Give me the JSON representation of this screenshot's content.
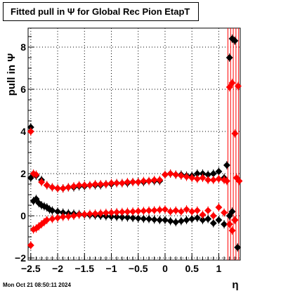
{
  "chart_data": {
    "type": "scatter",
    "title": "Fitted pull in  Ψ  for Global Rec Pion EtapT",
    "xlabel": "η",
    "ylabel": "pull in  Ψ",
    "xlim": [
      -2.55,
      1.4
    ],
    "ylim": [
      -2.1,
      8.9
    ],
    "grid": true,
    "x_ticks": [
      "−2.5",
      "−2",
      "−1.5",
      "−1",
      "−0.5",
      "0",
      "0.5",
      "1"
    ],
    "y_ticks": [
      "−2",
      "0",
      "2",
      "4",
      "6",
      "8"
    ],
    "series": [
      {
        "color": "#000000",
        "points": [
          [
            -2.5,
            4.2
          ],
          [
            -2.45,
            0.7
          ],
          [
            -2.4,
            0.8
          ],
          [
            -2.35,
            0.6
          ],
          [
            -2.3,
            0.5
          ],
          [
            -2.25,
            0.45
          ],
          [
            -2.2,
            0.4
          ],
          [
            -2.15,
            0.3
          ],
          [
            -2.1,
            0.25
          ],
          [
            -2.0,
            0.2
          ],
          [
            -1.9,
            0.15
          ],
          [
            -1.8,
            0.12
          ],
          [
            -1.7,
            0.1
          ],
          [
            -1.6,
            0.08
          ],
          [
            -1.5,
            0.05
          ],
          [
            -1.4,
            0.03
          ],
          [
            -1.3,
            0.02
          ],
          [
            -1.2,
            0.0
          ],
          [
            -1.1,
            -0.02
          ],
          [
            -1.0,
            -0.04
          ],
          [
            -0.9,
            -0.05
          ],
          [
            -0.8,
            -0.07
          ],
          [
            -0.7,
            -0.08
          ],
          [
            -0.6,
            -0.1
          ],
          [
            -0.5,
            -0.12
          ],
          [
            -0.4,
            -0.14
          ],
          [
            -0.3,
            -0.15
          ],
          [
            -0.2,
            -0.18
          ],
          [
            -0.1,
            -0.2
          ],
          [
            0.0,
            -0.2
          ],
          [
            0.1,
            -0.25
          ],
          [
            0.2,
            -0.3
          ],
          [
            0.3,
            -0.25
          ],
          [
            0.4,
            -0.2
          ],
          [
            0.5,
            -0.15
          ],
          [
            0.6,
            -0.1
          ],
          [
            0.7,
            -0.2
          ],
          [
            0.8,
            -0.15
          ],
          [
            0.9,
            -0.35
          ],
          [
            1.0,
            -0.2
          ],
          [
            1.1,
            -0.4
          ],
          [
            1.2,
            0.0
          ],
          [
            1.25,
            0.2
          ],
          [
            1.3,
            -0.2
          ],
          [
            1.35,
            -1.5
          ],
          [
            -2.5,
            1.8
          ],
          [
            -2.4,
            1.9
          ],
          [
            -2.3,
            1.7
          ],
          [
            -2.2,
            1.45
          ],
          [
            -2.1,
            1.35
          ],
          [
            -2.0,
            1.3
          ],
          [
            -1.9,
            1.3
          ],
          [
            -1.8,
            1.35
          ],
          [
            -1.7,
            1.35
          ],
          [
            -1.6,
            1.4
          ],
          [
            -1.5,
            1.4
          ],
          [
            -1.4,
            1.45
          ],
          [
            -1.3,
            1.45
          ],
          [
            -1.2,
            1.45
          ],
          [
            -1.1,
            1.5
          ],
          [
            -1.0,
            1.5
          ],
          [
            -0.9,
            1.55
          ],
          [
            -0.8,
            1.55
          ],
          [
            -0.7,
            1.55
          ],
          [
            -0.6,
            1.6
          ],
          [
            -0.5,
            1.6
          ],
          [
            -0.4,
            1.6
          ],
          [
            -0.3,
            1.65
          ],
          [
            -0.2,
            1.65
          ],
          [
            -0.1,
            1.65
          ],
          [
            0.0,
            1.95
          ],
          [
            0.1,
            2.0
          ],
          [
            0.2,
            1.95
          ],
          [
            0.3,
            1.95
          ],
          [
            0.4,
            1.9
          ],
          [
            0.5,
            1.9
          ],
          [
            0.6,
            2.0
          ],
          [
            0.7,
            2.0
          ],
          [
            0.8,
            1.95
          ],
          [
            0.9,
            2.0
          ],
          [
            1.0,
            2.1
          ],
          [
            1.1,
            1.8
          ],
          [
            1.15,
            2.4
          ],
          [
            1.2,
            7.5
          ],
          [
            1.25,
            8.4
          ],
          [
            1.3,
            8.3
          ]
        ]
      },
      {
        "color": "#ff0000",
        "points": [
          [
            -2.5,
            -1.4
          ],
          [
            -2.5,
            4.0
          ],
          [
            -2.45,
            -0.65
          ],
          [
            -2.4,
            -0.6
          ],
          [
            -2.35,
            -0.5
          ],
          [
            -2.3,
            -0.4
          ],
          [
            -2.25,
            -0.3
          ],
          [
            -2.2,
            -0.2
          ],
          [
            -2.1,
            -0.15
          ],
          [
            -2.0,
            -0.1
          ],
          [
            -1.9,
            -0.05
          ],
          [
            -1.8,
            -0.03
          ],
          [
            -1.7,
            0.0
          ],
          [
            -1.6,
            0.05
          ],
          [
            -1.5,
            0.07
          ],
          [
            -1.4,
            0.09
          ],
          [
            -1.3,
            0.1
          ],
          [
            -1.2,
            0.12
          ],
          [
            -1.1,
            0.14
          ],
          [
            -1.0,
            0.15
          ],
          [
            -0.9,
            0.17
          ],
          [
            -0.8,
            0.18
          ],
          [
            -0.7,
            0.19
          ],
          [
            -0.6,
            0.2
          ],
          [
            -0.5,
            0.22
          ],
          [
            -0.4,
            0.23
          ],
          [
            -0.3,
            0.25
          ],
          [
            -0.2,
            0.26
          ],
          [
            -0.1,
            0.28
          ],
          [
            0.0,
            0.3
          ],
          [
            0.1,
            0.2
          ],
          [
            0.2,
            0.25
          ],
          [
            0.3,
            0.2
          ],
          [
            0.4,
            0.3
          ],
          [
            0.5,
            0.2
          ],
          [
            0.6,
            0.25
          ],
          [
            0.7,
            0.05
          ],
          [
            0.8,
            0.25
          ],
          [
            0.9,
            0.0
          ],
          [
            1.0,
            0.4
          ],
          [
            1.1,
            0.15
          ],
          [
            1.2,
            -0.4
          ],
          [
            1.25,
            -0.7
          ],
          [
            1.3,
            -0.2
          ],
          [
            -2.45,
            2.0
          ],
          [
            -2.4,
            1.95
          ],
          [
            -2.3,
            1.6
          ],
          [
            -2.2,
            1.45
          ],
          [
            -2.1,
            1.35
          ],
          [
            -2.0,
            1.3
          ],
          [
            -1.9,
            1.3
          ],
          [
            -1.8,
            1.35
          ],
          [
            -1.7,
            1.4
          ],
          [
            -1.6,
            1.45
          ],
          [
            -1.5,
            1.45
          ],
          [
            -1.4,
            1.45
          ],
          [
            -1.3,
            1.5
          ],
          [
            -1.2,
            1.5
          ],
          [
            -1.1,
            1.5
          ],
          [
            -1.0,
            1.55
          ],
          [
            -0.9,
            1.55
          ],
          [
            -0.8,
            1.55
          ],
          [
            -0.7,
            1.6
          ],
          [
            -0.6,
            1.6
          ],
          [
            -0.5,
            1.6
          ],
          [
            -0.4,
            1.65
          ],
          [
            -0.3,
            1.65
          ],
          [
            -0.2,
            1.7
          ],
          [
            -0.1,
            1.7
          ],
          [
            0.0,
            1.95
          ],
          [
            0.1,
            2.0
          ],
          [
            0.2,
            1.95
          ],
          [
            0.3,
            1.9
          ],
          [
            0.4,
            1.85
          ],
          [
            0.5,
            1.8
          ],
          [
            0.6,
            1.75
          ],
          [
            0.7,
            1.8
          ],
          [
            0.8,
            1.7
          ],
          [
            0.9,
            1.7
          ],
          [
            1.0,
            1.75
          ],
          [
            1.1,
            1.7
          ],
          [
            1.15,
            1.65
          ],
          [
            1.2,
            6.1
          ],
          [
            1.25,
            6.3
          ],
          [
            1.3,
            3.9
          ],
          [
            1.33,
            1.8
          ],
          [
            1.36,
            6.15
          ],
          [
            1.38,
            1.65
          ]
        ]
      }
    ],
    "error_bar_x": [
      1.17,
      1.22,
      1.27,
      1.32,
      1.37
    ]
  },
  "footer": {
    "timestamp": "Mon Oct 21 08:50:11 2024"
  }
}
